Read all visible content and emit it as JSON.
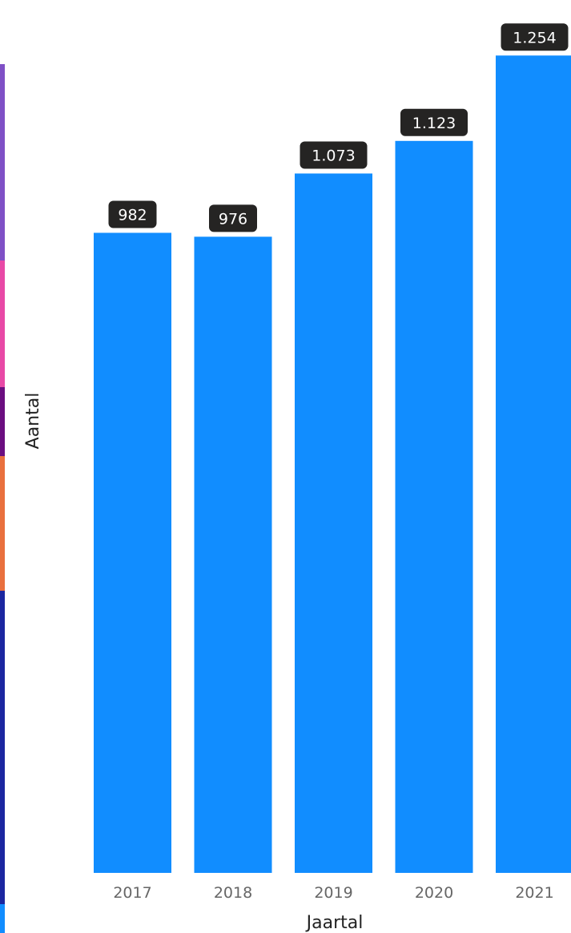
{
  "chart_data": {
    "type": "bar",
    "categories": [
      "2017",
      "2018",
      "2019",
      "2020",
      "2021"
    ],
    "values": [
      982,
      976,
      1073,
      1123,
      1254
    ],
    "data_labels": [
      "982",
      "976",
      "1.073",
      "1.123",
      "1.254"
    ],
    "xlabel": "Jaartal",
    "ylabel": "Aantal",
    "ylim": [
      0,
      1290
    ],
    "grid": false,
    "legend": "none",
    "colors": {
      "bar": "#118dff",
      "label_bg": "#252423",
      "label_text": "#ffffff",
      "tick_text": "#666666",
      "strip": [
        "#7f50c6",
        "#e849a6",
        "#6b0e80",
        "#e9703e",
        "#1b26a0",
        "#118dff"
      ]
    }
  }
}
